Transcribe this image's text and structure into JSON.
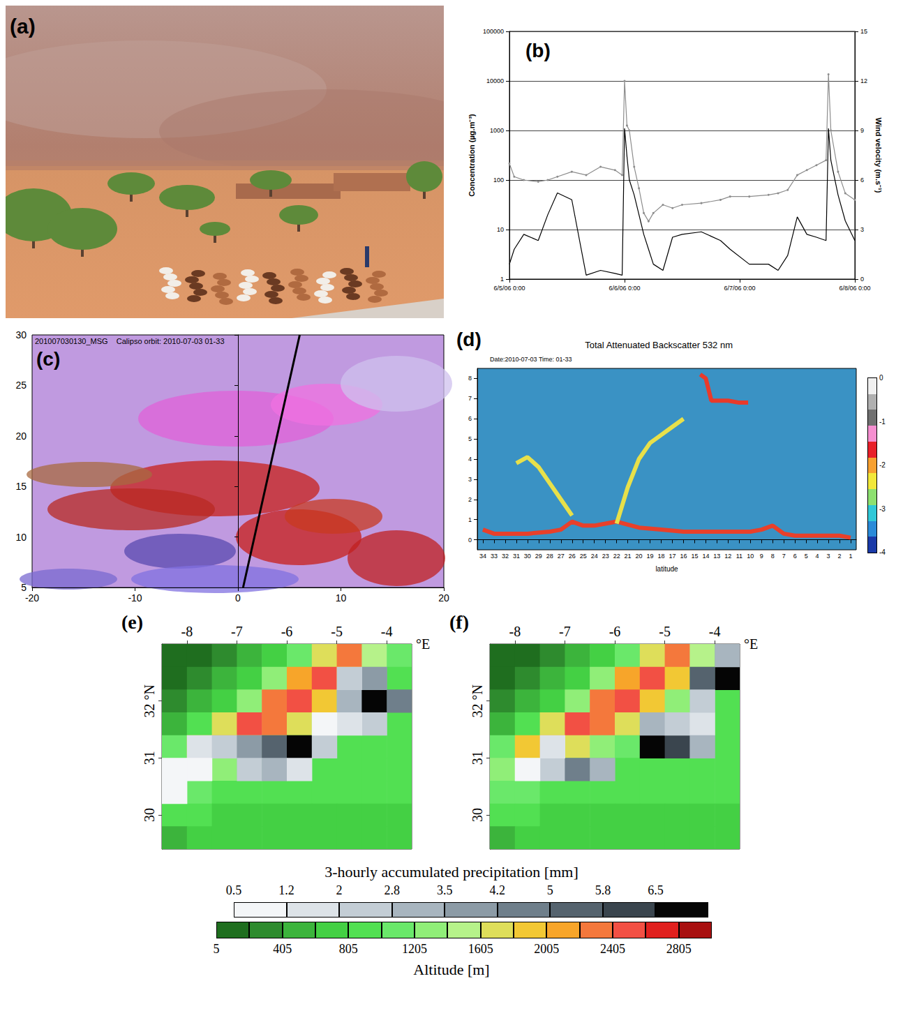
{
  "photo": {
    "panel_label": "(a)"
  },
  "chart_data": [
    {
      "type": "line",
      "panel_label": "(b)",
      "ylabel": "Concentration (µg.m⁻³)",
      "y2label": "Wind velocity (m.s⁻¹)",
      "log": "y",
      "grid": true,
      "x": [
        "2006-06-05 00:00",
        "2006-06-05 01:00",
        "2006-06-05 03:00",
        "2006-06-05 06:00",
        "2006-06-05 08:00",
        "2006-06-05 10:00",
        "2006-06-05 13:00",
        "2006-06-05 16:00",
        "2006-06-05 19:00",
        "2006-06-05 22:00",
        "2006-06-05 23:30",
        "2006-06-06 00:00",
        "2006-06-06 00:30",
        "2006-06-06 01:00",
        "2006-06-06 02:00",
        "2006-06-06 03:00",
        "2006-06-06 04:00",
        "2006-06-06 05:00",
        "2006-06-06 06:00",
        "2006-06-06 08:00",
        "2006-06-06 10:00",
        "2006-06-06 12:00",
        "2006-06-06 16:00",
        "2006-06-06 20:00",
        "2006-06-06 22:00",
        "2006-06-07 02:00",
        "2006-06-07 06:00",
        "2006-06-07 08:00",
        "2006-06-07 10:00",
        "2006-06-07 12:00",
        "2006-06-07 14:00",
        "2006-06-07 16:00",
        "2006-06-07 18:00",
        "2006-06-07 18:30",
        "2006-06-07 19:00",
        "2006-06-07 20:30",
        "2006-06-07 22:00",
        "2006-06-08 00:00"
      ],
      "xlim": [
        "2006-06-05 00:00",
        "2006-06-08 00:00"
      ],
      "xticks": [
        {
          "value": "2006-06-05 00:00",
          "label": "6/5/06 0:00"
        },
        {
          "value": "2006-06-06 00:00",
          "label": "6/6/06 0:00"
        },
        {
          "value": "2006-06-07 00:00",
          "label": "6/7/06 0:00"
        },
        {
          "value": "2006-06-08 00:00",
          "label": "6/8/06 0:00"
        }
      ],
      "ylim": [
        1,
        100000
      ],
      "yticks": [
        1,
        10,
        100,
        1000,
        10000,
        100000
      ],
      "y2lim": [
        0,
        15
      ],
      "y2ticks": [
        0,
        3,
        6,
        9,
        12,
        15
      ],
      "series": [
        {
          "color": "#000000",
          "marker": "none",
          "values": [
            2,
            4,
            8,
            6,
            20,
            55,
            40,
            1.2,
            1.5,
            1.3,
            1.2,
            1100,
            300,
            100,
            50,
            20,
            8,
            4,
            2,
            1.5,
            7,
            8,
            9,
            6,
            4,
            2,
            2,
            1.5,
            3,
            18,
            8,
            7,
            6,
            1100,
            250,
            50,
            15,
            6
          ]
        },
        {
          "color": "#8c8c8c",
          "marker": "circle",
          "axis": "y2",
          "values": [
            7.0,
            6.2,
            6.0,
            5.9,
            6.0,
            6.2,
            6.5,
            6.3,
            6.8,
            6.6,
            6.3,
            12.0,
            9.3,
            9.0,
            6.8,
            5.5,
            4.0,
            3.5,
            4.0,
            4.5,
            4.3,
            4.5,
            4.6,
            4.8,
            5.0,
            5.0,
            5.1,
            5.2,
            5.4,
            6.3,
            6.6,
            6.9,
            7.2,
            12.4,
            9.0,
            6.5,
            5.2,
            4.8
          ]
        }
      ]
    },
    {
      "type": "image_map",
      "panel_label": "(c)",
      "title": "201007030130_MSG    Calipso orbit: 2010-07-03 01-33",
      "xlim": [
        -20,
        20
      ],
      "xticks": [
        -20,
        -10,
        0,
        10,
        20
      ],
      "ylim": [
        5,
        30
      ],
      "yticks": [
        5,
        10,
        15,
        20,
        25,
        30
      ],
      "series": [
        {
          "color": "#000000",
          "x": [
            0.5,
            6
          ],
          "values": [
            5,
            30
          ]
        }
      ]
    },
    {
      "type": "profile",
      "panel_label": "(d)",
      "title": "Total Attenuated Backscatter 532 nm",
      "subtitle": "Date:2010-07-03 Time: 01-33",
      "xlabel": "latitude",
      "xlim": [
        34.5,
        0.5
      ],
      "xticks": [
        34,
        33,
        32,
        31,
        30,
        29,
        28,
        27,
        26,
        25,
        24,
        23,
        22,
        21,
        20,
        19,
        18,
        17,
        16,
        15,
        14,
        13,
        12,
        11,
        10,
        9,
        8,
        7,
        6,
        5,
        4,
        3,
        2,
        1
      ],
      "ylim": [
        -0.5,
        8.5
      ],
      "yticks": [
        0,
        1,
        2,
        3,
        4,
        5,
        6,
        7,
        8
      ],
      "series": [
        {
          "color": "#e8402a",
          "x": [
            34,
            33,
            32,
            30,
            28,
            27,
            26,
            25,
            24,
            23,
            22,
            20,
            18,
            16,
            14,
            12,
            10,
            9,
            8,
            7,
            6,
            4,
            2,
            1
          ],
          "values": [
            0.5,
            0.3,
            0.3,
            0.3,
            0.4,
            0.5,
            0.9,
            0.7,
            0.7,
            0.8,
            0.9,
            0.6,
            0.5,
            0.4,
            0.4,
            0.4,
            0.4,
            0.5,
            0.7,
            0.3,
            0.2,
            0.2,
            0.2,
            0.1
          ]
        },
        {
          "color": "#e8e04a",
          "x": [
            31,
            30,
            29,
            28,
            27,
            26
          ],
          "values": [
            3.8,
            4.1,
            3.6,
            2.8,
            2.0,
            1.2
          ]
        },
        {
          "color": "#e8e04a",
          "x": [
            22,
            21,
            20,
            19,
            18,
            17,
            16
          ],
          "values": [
            0.8,
            2.6,
            4.0,
            4.8,
            5.2,
            5.6,
            6.0
          ]
        },
        {
          "color": "#e83a2a",
          "x": [
            14.5,
            14,
            13.5,
            12,
            11,
            10.2
          ],
          "values": [
            8.2,
            8.0,
            6.9,
            6.9,
            6.8,
            6.8
          ]
        }
      ],
      "colorbar": {
        "range": [
          0,
          -4
        ],
        "ticks": [
          0,
          -1,
          -2,
          -3,
          -4
        ],
        "colors": [
          "#f0f0f0",
          "#b0b0b0",
          "#707070",
          "#f58fd0",
          "#e8202a",
          "#f7a030",
          "#f2e83a",
          "#8de070",
          "#30c8d8",
          "#2a8ad8",
          "#1a3aa8"
        ]
      }
    },
    {
      "type": "heatmap",
      "panel_label": "(e)",
      "x_unit": "°E",
      "xlim": [
        -8.5,
        -3.5
      ],
      "xticks": [
        -8,
        -7,
        -6,
        -5,
        -4
      ],
      "ylim": [
        29.4,
        33.0
      ],
      "yticks": [
        30,
        31,
        {
          "value": 32,
          "label": "32 °N"
        }
      ],
      "cell_size": [
        0.5,
        0.4
      ],
      "altitude": {
        "lon": [
          -8.25,
          -7.75,
          -7.25,
          -6.75,
          -6.25,
          -5.75,
          -5.25,
          -4.75,
          -4.25,
          -3.75
        ],
        "lat": [
          32.8,
          32.4,
          32.0,
          31.6,
          31.2,
          30.8,
          30.4,
          30.0,
          29.6
        ],
        "values": [
          [
            100,
            200,
            300,
            500,
            800,
            1200,
            1800,
            2400,
            1600,
            1200
          ],
          [
            200,
            300,
            500,
            800,
            1400,
            2200,
            2600,
            2000,
            1400,
            1000
          ],
          [
            300,
            500,
            800,
            1400,
            2400,
            2600,
            2000,
            1400,
            1100,
            900
          ],
          [
            500,
            900,
            1800,
            2600,
            2400,
            1800,
            1300,
            1000,
            900,
            900
          ],
          [
            1200,
            2000,
            2200,
            1800,
            1400,
            1100,
            1000,
            900,
            900,
            900
          ],
          [
            1400,
            1600,
            1400,
            1200,
            1000,
            900,
            900,
            900,
            900,
            900
          ],
          [
            1200,
            1100,
            1000,
            900,
            900,
            900,
            900,
            900,
            900,
            900
          ],
          [
            1000,
            900,
            800,
            800,
            800,
            800,
            800,
            800,
            800,
            800
          ],
          [
            500,
            700,
            800,
            800,
            800,
            800,
            800,
            800,
            800,
            800
          ]
        ]
      },
      "precipitation": [
        [
          -7.75,
          31.2,
          1.5
        ],
        [
          -7.25,
          31.2,
          2.5
        ],
        [
          -6.75,
          31.2,
          3.5
        ],
        [
          -6.25,
          31.2,
          5.5
        ],
        [
          -5.75,
          31.2,
          6.8
        ],
        [
          -5.25,
          31.2,
          2.0
        ],
        [
          -6.75,
          30.8,
          2.0
        ],
        [
          -6.25,
          30.8,
          3.0
        ],
        [
          -5.75,
          30.8,
          1.5
        ],
        [
          -7.75,
          30.8,
          1.0
        ],
        [
          -4.75,
          32.0,
          3.0
        ],
        [
          -4.25,
          32.0,
          6.8
        ],
        [
          -3.75,
          32.0,
          4.5
        ],
        [
          -4.25,
          32.4,
          4.0
        ],
        [
          -4.75,
          32.4,
          2.0
        ],
        [
          -4.25,
          31.6,
          2.5
        ],
        [
          -4.75,
          31.6,
          1.5
        ],
        [
          -5.25,
          31.6,
          1.0
        ],
        [
          -8.25,
          30.8,
          0.8
        ],
        [
          -8.25,
          30.4,
          0.6
        ]
      ]
    },
    {
      "type": "heatmap",
      "panel_label": "(f)",
      "x_unit": "°E",
      "xlim": [
        -8.5,
        -3.5
      ],
      "xticks": [
        -8,
        -7,
        -6,
        -5,
        -4
      ],
      "ylim": [
        29.4,
        33.0
      ],
      "yticks": [
        30,
        31,
        {
          "value": 32,
          "label": "32 °N"
        }
      ],
      "cell_size": [
        0.5,
        0.4
      ],
      "altitude": {
        "lon": [
          -8.25,
          -7.75,
          -7.25,
          -6.75,
          -6.25,
          -5.75,
          -5.25,
          -4.75,
          -4.25,
          -3.75
        ],
        "lat": [
          32.8,
          32.4,
          32.0,
          31.6,
          31.2,
          30.8,
          30.4,
          30.0,
          29.6
        ],
        "values": [
          [
            100,
            200,
            300,
            500,
            800,
            1200,
            1800,
            2400,
            1600,
            1200
          ],
          [
            200,
            300,
            500,
            800,
            1400,
            2200,
            2600,
            2000,
            1400,
            1000
          ],
          [
            300,
            500,
            800,
            1400,
            2400,
            2600,
            2000,
            1400,
            1100,
            900
          ],
          [
            500,
            900,
            1800,
            2600,
            2400,
            1800,
            1300,
            1000,
            900,
            900
          ],
          [
            1200,
            2000,
            2200,
            1800,
            1400,
            1100,
            1000,
            900,
            900,
            900
          ],
          [
            1400,
            1600,
            1400,
            1200,
            1000,
            900,
            900,
            900,
            900,
            900
          ],
          [
            1200,
            1100,
            1000,
            900,
            900,
            900,
            900,
            900,
            900,
            900
          ],
          [
            1000,
            900,
            800,
            800,
            800,
            800,
            800,
            800,
            800,
            800
          ],
          [
            500,
            700,
            800,
            800,
            800,
            800,
            800,
            800,
            800,
            800
          ]
        ]
      },
      "precipitation": [
        [
          -7.25,
          30.8,
          2.5
        ],
        [
          -6.75,
          30.8,
          4.5
        ],
        [
          -6.25,
          30.8,
          3.0
        ],
        [
          -7.75,
          30.8,
          1.0
        ],
        [
          -7.25,
          31.2,
          1.5
        ],
        [
          -5.25,
          31.2,
          6.8
        ],
        [
          -4.75,
          31.2,
          6.0
        ],
        [
          -5.25,
          31.6,
          3.0
        ],
        [
          -4.75,
          31.6,
          2.0
        ],
        [
          -4.25,
          31.6,
          1.5
        ],
        [
          -4.25,
          31.2,
          3.0
        ],
        [
          -3.75,
          32.4,
          6.8
        ],
        [
          -4.25,
          32.4,
          5.0
        ],
        [
          -3.75,
          32.8,
          3.0
        ],
        [
          -4.25,
          32.0,
          2.0
        ]
      ]
    }
  ],
  "shared_colorbars": {
    "precipitation": {
      "title": "3-hourly accumulated precipitation [mm]",
      "ticks": [
        0.5,
        1.2,
        2.0,
        2.8,
        3.5,
        4.2,
        5.0,
        5.8,
        6.5
      ],
      "range": [
        0.5,
        7.3
      ],
      "colors": [
        "#f4f6f8",
        "#dde3e8",
        "#c3cdd5",
        "#a8b5bf",
        "#8c9ba6",
        "#6f7f8b",
        "#55636e",
        "#3a454e",
        "#050505"
      ]
    },
    "altitude": {
      "title": "Altitude [m]",
      "ticks": [
        5,
        405,
        805,
        1205,
        1605,
        2005,
        2405,
        2805
      ],
      "range": [
        5,
        3005
      ],
      "colors": [
        "#1f6e1f",
        "#2e8b2e",
        "#3cb43c",
        "#44d044",
        "#52e052",
        "#6ae86a",
        "#90ee78",
        "#b6f28a",
        "#dede5a",
        "#f2c834",
        "#f7a52a",
        "#f4783c",
        "#f25044",
        "#e0201e",
        "#a81010"
      ]
    }
  }
}
